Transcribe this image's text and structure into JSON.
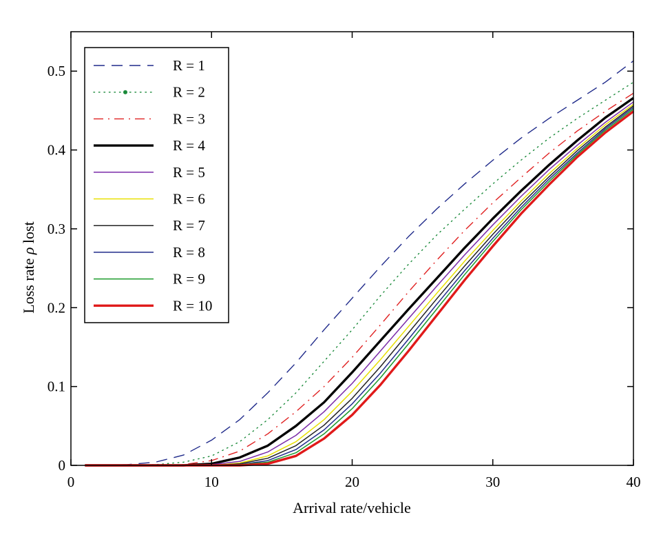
{
  "chart_data": {
    "type": "line",
    "title": "",
    "xlabel": "Arrival rate/vehicle",
    "ylabel_prefix": "Loss rate ",
    "ylabel_symbol": "ρ",
    "ylabel_suffix": " lost",
    "xlim": [
      0,
      40
    ],
    "ylim": [
      0,
      0.55
    ],
    "xticks": [
      0,
      10,
      20,
      30,
      40
    ],
    "xtick_labels": [
      "0",
      "10",
      "20",
      "30",
      "40"
    ],
    "yticks": [
      0,
      0.1,
      0.2,
      0.3,
      0.4,
      0.5
    ],
    "ytick_labels": [
      "0",
      "0.1",
      "0.2",
      "0.3",
      "0.4",
      "0.5"
    ],
    "grid": false,
    "legend_position": "top-left",
    "x": [
      1,
      2,
      4,
      6,
      8,
      10,
      12,
      14,
      16,
      18,
      20,
      22,
      24,
      26,
      28,
      30,
      32,
      34,
      36,
      38,
      40
    ],
    "series": [
      {
        "name": "R = 1",
        "color": "#1f2a8a",
        "style": "dashed",
        "width": 1.4,
        "values": [
          0,
          0,
          0.001,
          0.004,
          0.013,
          0.032,
          0.058,
          0.092,
          0.13,
          0.172,
          0.212,
          0.252,
          0.29,
          0.325,
          0.357,
          0.387,
          0.415,
          0.44,
          0.463,
          0.486,
          0.513
        ]
      },
      {
        "name": "R = 2",
        "color": "#1a8a3a",
        "style": "dotted",
        "width": 1.4,
        "values": [
          0,
          0,
          0,
          0.001,
          0.004,
          0.012,
          0.03,
          0.058,
          0.092,
          0.132,
          0.172,
          0.215,
          0.255,
          0.292,
          0.325,
          0.357,
          0.387,
          0.415,
          0.44,
          0.463,
          0.486
        ]
      },
      {
        "name": "R = 3",
        "color": "#e02020",
        "style": "dashdot",
        "width": 1.4,
        "values": [
          0,
          0,
          0,
          0,
          0.001,
          0.006,
          0.018,
          0.04,
          0.068,
          0.1,
          0.137,
          0.178,
          0.22,
          0.26,
          0.298,
          0.333,
          0.365,
          0.396,
          0.424,
          0.449,
          0.472
        ]
      },
      {
        "name": "R = 4",
        "color": "#000000",
        "style": "solid",
        "width": 3.4,
        "values": [
          0,
          0,
          0,
          0,
          0,
          0.002,
          0.01,
          0.025,
          0.05,
          0.08,
          0.118,
          0.158,
          0.198,
          0.237,
          0.276,
          0.313,
          0.348,
          0.381,
          0.412,
          0.441,
          0.466
        ]
      },
      {
        "name": "R = 5",
        "color": "#7a2aa8",
        "style": "solid",
        "width": 1.5,
        "values": [
          0,
          0,
          0,
          0,
          0,
          0.001,
          0.005,
          0.017,
          0.038,
          0.068,
          0.104,
          0.145,
          0.186,
          0.227,
          0.267,
          0.305,
          0.341,
          0.375,
          0.406,
          0.435,
          0.461
        ]
      },
      {
        "name": "R = 6",
        "color": "#e8e000",
        "style": "solid",
        "width": 1.5,
        "values": [
          0,
          0,
          0,
          0,
          0,
          0,
          0.003,
          0.012,
          0.03,
          0.058,
          0.094,
          0.134,
          0.176,
          0.218,
          0.259,
          0.298,
          0.335,
          0.37,
          0.402,
          0.432,
          0.458
        ]
      },
      {
        "name": "R = 7",
        "color": "#222222",
        "style": "solid",
        "width": 1.5,
        "values": [
          0,
          0,
          0,
          0,
          0,
          0,
          0.002,
          0.009,
          0.025,
          0.051,
          0.085,
          0.125,
          0.168,
          0.211,
          0.253,
          0.293,
          0.331,
          0.366,
          0.399,
          0.429,
          0.456
        ]
      },
      {
        "name": "R = 8",
        "color": "#1f2a8a",
        "style": "solid",
        "width": 1.5,
        "values": [
          0,
          0,
          0,
          0,
          0,
          0,
          0.001,
          0.006,
          0.02,
          0.045,
          0.078,
          0.117,
          0.16,
          0.204,
          0.247,
          0.288,
          0.327,
          0.363,
          0.396,
          0.427,
          0.454
        ]
      },
      {
        "name": "R = 9",
        "color": "#1a9a2a",
        "style": "solid",
        "width": 1.5,
        "values": [
          0,
          0,
          0,
          0,
          0,
          0,
          0.001,
          0.004,
          0.016,
          0.04,
          0.072,
          0.111,
          0.154,
          0.198,
          0.242,
          0.284,
          0.324,
          0.36,
          0.394,
          0.425,
          0.452
        ]
      },
      {
        "name": "R = 10",
        "color": "#e01a1a",
        "style": "solid",
        "width": 3.4,
        "values": [
          0,
          0,
          0,
          0,
          0,
          0,
          0,
          0.002,
          0.012,
          0.034,
          0.064,
          0.102,
          0.145,
          0.19,
          0.235,
          0.278,
          0.319,
          0.356,
          0.391,
          0.422,
          0.449
        ]
      }
    ]
  }
}
